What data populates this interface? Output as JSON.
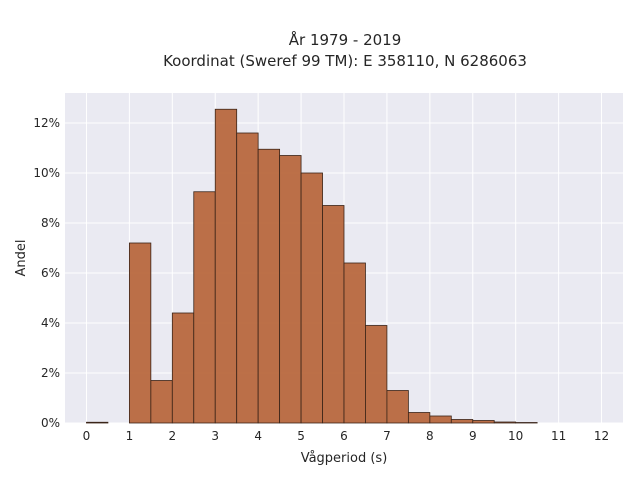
{
  "chart_data": {
    "type": "bar",
    "title": "År 1979 - 2019",
    "subtitle": "Koordinat (Sweref 99 TM): E 358110, N 6286063",
    "xlabel": "Vågperiod (s)",
    "ylabel": "Andel",
    "xlim": [
      -0.5,
      12.5
    ],
    "ylim": [
      0,
      13.2
    ],
    "x_ticks": [
      0,
      1,
      2,
      3,
      4,
      5,
      6,
      7,
      8,
      9,
      10,
      11,
      12
    ],
    "x_tick_labels": [
      "0",
      "1",
      "2",
      "3",
      "4",
      "5",
      "6",
      "7",
      "8",
      "9",
      "10",
      "11",
      "12"
    ],
    "y_ticks": [
      0,
      2,
      4,
      6,
      8,
      10,
      12
    ],
    "y_tick_labels": [
      "0%",
      "2%",
      "4%",
      "6%",
      "8%",
      "10%",
      "12%"
    ],
    "grid": true,
    "bin_width": 0.5,
    "bins": [
      {
        "start": 0.0,
        "value": 0.03
      },
      {
        "start": 1.0,
        "value": 7.2
      },
      {
        "start": 1.5,
        "value": 1.7
      },
      {
        "start": 2.0,
        "value": 4.4
      },
      {
        "start": 2.5,
        "value": 9.25
      },
      {
        "start": 3.0,
        "value": 12.55
      },
      {
        "start": 3.5,
        "value": 11.6
      },
      {
        "start": 4.0,
        "value": 10.95
      },
      {
        "start": 4.5,
        "value": 10.7
      },
      {
        "start": 5.0,
        "value": 10.0
      },
      {
        "start": 5.5,
        "value": 8.7
      },
      {
        "start": 6.0,
        "value": 6.4
      },
      {
        "start": 6.5,
        "value": 3.9
      },
      {
        "start": 7.0,
        "value": 1.3
      },
      {
        "start": 7.5,
        "value": 0.42
      },
      {
        "start": 8.0,
        "value": 0.28
      },
      {
        "start": 8.5,
        "value": 0.14
      },
      {
        "start": 9.0,
        "value": 0.1
      },
      {
        "start": 9.5,
        "value": 0.04
      },
      {
        "start": 10.0,
        "value": 0.02
      }
    ],
    "colors": {
      "bar_fill": "#b8683e",
      "bar_edge": "#3a2418",
      "plot_background": "#eaeaf2",
      "grid": "#ffffff"
    }
  }
}
